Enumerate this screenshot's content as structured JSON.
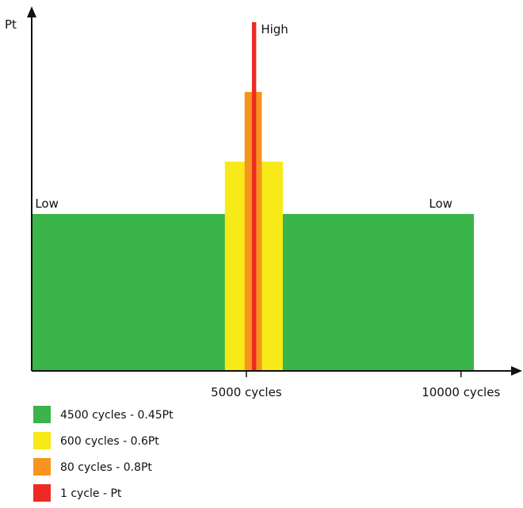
{
  "chart_data": {
    "type": "bar",
    "ylabel": "Pt",
    "x_ticks": [
      {
        "value": 5000,
        "label": "5000 cycles"
      },
      {
        "value": 10000,
        "label": "10000 cycles"
      }
    ],
    "bars": [
      {
        "name": "4500 cycles - 0.45Pt",
        "x_start": 0,
        "x_end": 10300,
        "height": 0.45,
        "color": "#3bb44a"
      },
      {
        "name": "600 cycles - 0.6Pt",
        "x_start": 4500,
        "x_end": 5850,
        "height": 0.6,
        "color": "#f7ea18"
      },
      {
        "name": "80 cycles - 0.8Pt",
        "x_start": 4960,
        "x_end": 5360,
        "height": 0.8,
        "color": "#f7941d"
      },
      {
        "name": "1 cycle - Pt",
        "x_start": 5130,
        "x_end": 5230,
        "height": 1.0,
        "color": "#ee2a24"
      }
    ],
    "annotations": [
      {
        "text": "Low",
        "x": 80,
        "y": 0.45,
        "anchor": "start"
      },
      {
        "text": "Low",
        "x": 9800,
        "y": 0.45,
        "anchor": "end"
      },
      {
        "text": "High",
        "x": 5230,
        "y": 1.0,
        "anchor": "start"
      }
    ],
    "legend": [
      {
        "label": "4500 cycles - 0.45Pt",
        "color": "#3bb44a"
      },
      {
        "label": "600 cycles - 0.6Pt",
        "color": "#f7ea18"
      },
      {
        "label": "80 cycles - 0.8Pt",
        "color": "#f7941d"
      },
      {
        "label": "1 cycle - Pt",
        "color": "#ee2a24"
      }
    ],
    "xlim": [
      0,
      10300
    ],
    "ylim": [
      0,
      1.0
    ],
    "grid": false,
    "legend_position": "bottom-left"
  }
}
